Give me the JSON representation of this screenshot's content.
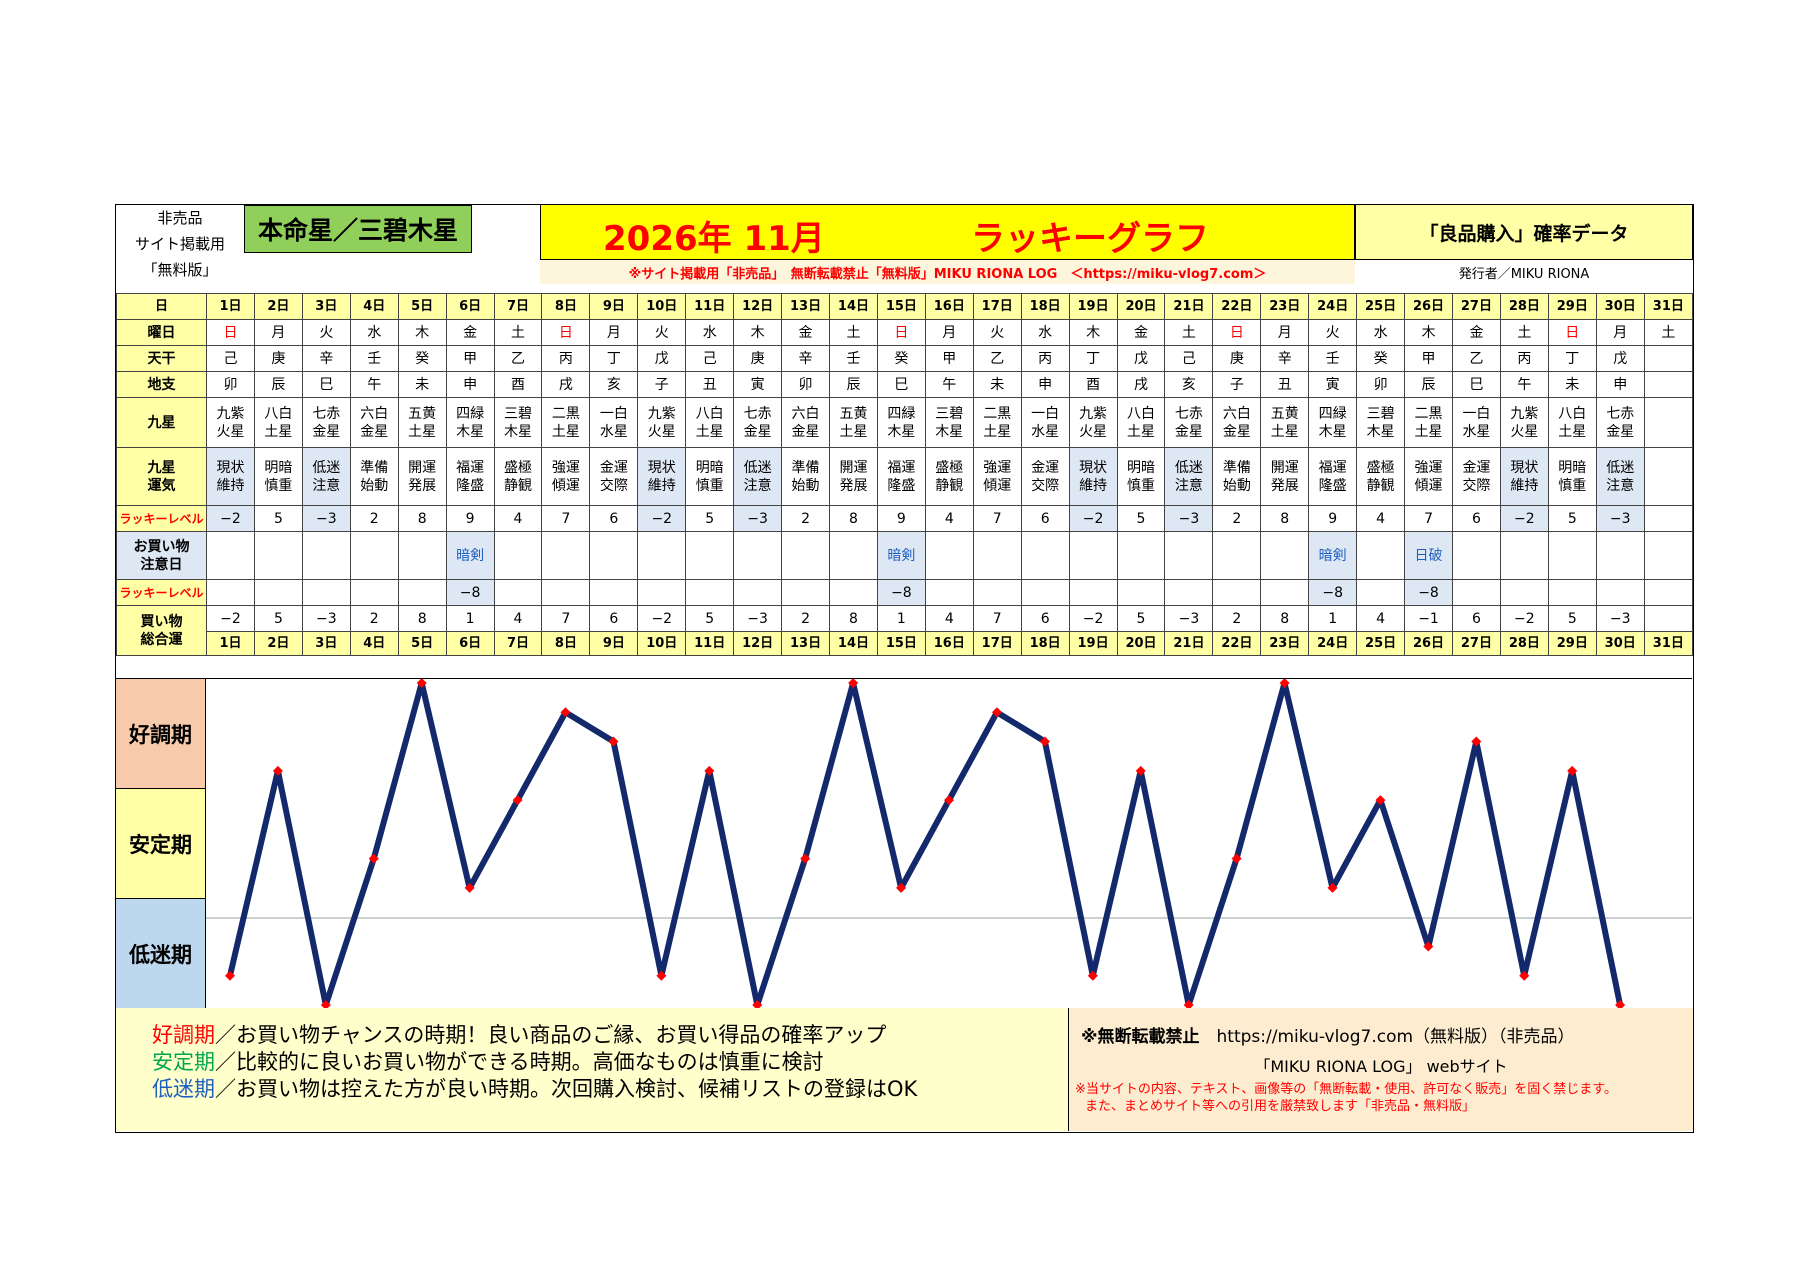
{
  "header": {
    "top_left_notes": [
      "非売品",
      "サイト掲載用",
      "「無料版」"
    ],
    "honmei_star": "本命星／三碧木星",
    "year_month": "2026年 11月",
    "graph_title": "ラッキーグラフ",
    "data_label": "「良品購入」確率データ",
    "notice": "※サイト掲載用「非売品」　無断転載禁止「無料版」MIKU RIONA LOG　＜https://miku-vlog7.com＞",
    "publisher": "発行者／MIKU RIONA"
  },
  "row_labels": {
    "day": "日",
    "weekday": "曜日",
    "tenkan": "天干",
    "chishi": "地支",
    "kyusei": "九星",
    "kyusei_luck": [
      "九星",
      "運気"
    ],
    "lucky_level": "ラッキーレベル",
    "caution_day": [
      "お買い物",
      "注意日"
    ],
    "lucky_level2": "ラッキーレベル",
    "total": [
      "買い物",
      "総合運"
    ]
  },
  "days": [
    "1日",
    "2日",
    "3日",
    "4日",
    "5日",
    "6日",
    "7日",
    "8日",
    "9日",
    "10日",
    "11日",
    "12日",
    "13日",
    "14日",
    "15日",
    "16日",
    "17日",
    "18日",
    "19日",
    "20日",
    "21日",
    "22日",
    "23日",
    "24日",
    "25日",
    "26日",
    "27日",
    "28日",
    "29日",
    "30日",
    "31日"
  ],
  "weekdays": [
    "日",
    "月",
    "火",
    "水",
    "木",
    "金",
    "土",
    "日",
    "月",
    "火",
    "水",
    "木",
    "金",
    "土",
    "日",
    "月",
    "火",
    "水",
    "木",
    "金",
    "土",
    "日",
    "月",
    "火",
    "水",
    "木",
    "金",
    "土",
    "日",
    "月",
    "土"
  ],
  "tenkan": [
    "己",
    "庚",
    "辛",
    "壬",
    "癸",
    "甲",
    "乙",
    "丙",
    "丁",
    "戊",
    "己",
    "庚",
    "辛",
    "壬",
    "癸",
    "甲",
    "乙",
    "丙",
    "丁",
    "戊",
    "己",
    "庚",
    "辛",
    "壬",
    "癸",
    "甲",
    "乙",
    "丙",
    "丁",
    "戊",
    ""
  ],
  "chishi": [
    "卯",
    "辰",
    "巳",
    "午",
    "未",
    "申",
    "酉",
    "戌",
    "亥",
    "子",
    "丑",
    "寅",
    "卯",
    "辰",
    "巳",
    "午",
    "未",
    "申",
    "酉",
    "戌",
    "亥",
    "子",
    "丑",
    "寅",
    "卯",
    "辰",
    "巳",
    "午",
    "未",
    "申",
    ""
  ],
  "kyusei": [
    [
      "九紫",
      "火星"
    ],
    [
      "八白",
      "土星"
    ],
    [
      "七赤",
      "金星"
    ],
    [
      "六白",
      "金星"
    ],
    [
      "五黄",
      "土星"
    ],
    [
      "四緑",
      "木星"
    ],
    [
      "三碧",
      "木星"
    ],
    [
      "二黒",
      "土星"
    ],
    [
      "一白",
      "水星"
    ],
    [
      "九紫",
      "火星"
    ],
    [
      "八白",
      "土星"
    ],
    [
      "七赤",
      "金星"
    ],
    [
      "六白",
      "金星"
    ],
    [
      "五黄",
      "土星"
    ],
    [
      "四緑",
      "木星"
    ],
    [
      "三碧",
      "木星"
    ],
    [
      "二黒",
      "土星"
    ],
    [
      "一白",
      "水星"
    ],
    [
      "九紫",
      "火星"
    ],
    [
      "八白",
      "土星"
    ],
    [
      "七赤",
      "金星"
    ],
    [
      "六白",
      "金星"
    ],
    [
      "五黄",
      "土星"
    ],
    [
      "四緑",
      "木星"
    ],
    [
      "三碧",
      "木星"
    ],
    [
      "二黒",
      "土星"
    ],
    [
      "一白",
      "水星"
    ],
    [
      "九紫",
      "火星"
    ],
    [
      "八白",
      "土星"
    ],
    [
      "七赤",
      "金星"
    ],
    [
      "",
      ""
    ]
  ],
  "kyusei_luck": [
    [
      "現状",
      "維持"
    ],
    [
      "明暗",
      "慎重"
    ],
    [
      "低迷",
      "注意"
    ],
    [
      "準備",
      "始動"
    ],
    [
      "開運",
      "発展"
    ],
    [
      "福運",
      "隆盛"
    ],
    [
      "盛極",
      "静観"
    ],
    [
      "強運",
      "傾運"
    ],
    [
      "金運",
      "交際"
    ],
    [
      "現状",
      "維持"
    ],
    [
      "明暗",
      "慎重"
    ],
    [
      "低迷",
      "注意"
    ],
    [
      "準備",
      "始動"
    ],
    [
      "開運",
      "発展"
    ],
    [
      "福運",
      "隆盛"
    ],
    [
      "盛極",
      "静観"
    ],
    [
      "強運",
      "傾運"
    ],
    [
      "金運",
      "交際"
    ],
    [
      "現状",
      "維持"
    ],
    [
      "明暗",
      "慎重"
    ],
    [
      "低迷",
      "注意"
    ],
    [
      "準備",
      "始動"
    ],
    [
      "開運",
      "発展"
    ],
    [
      "福運",
      "隆盛"
    ],
    [
      "盛極",
      "静観"
    ],
    [
      "強運",
      "傾運"
    ],
    [
      "金運",
      "交際"
    ],
    [
      "現状",
      "維持"
    ],
    [
      "明暗",
      "慎重"
    ],
    [
      "低迷",
      "注意"
    ],
    [
      "",
      ""
    ]
  ],
  "lucky_level": [
    "−2",
    "5",
    "−3",
    "2",
    "8",
    "9",
    "4",
    "7",
    "6",
    "−2",
    "5",
    "−3",
    "2",
    "8",
    "9",
    "4",
    "7",
    "6",
    "−2",
    "5",
    "−3",
    "2",
    "8",
    "9",
    "4",
    "7",
    "6",
    "−2",
    "5",
    "−3",
    ""
  ],
  "caution": [
    "",
    "",
    "",
    "",
    "",
    "暗剣",
    "",
    "",
    "",
    "",
    "",
    "",
    "",
    "",
    "暗剣",
    "",
    "",
    "",
    "",
    "",
    "",
    "",
    "",
    "暗剣",
    "",
    "日破",
    "",
    "",
    "",
    "",
    ""
  ],
  "caution_level": [
    "",
    "",
    "",
    "",
    "",
    "−8",
    "",
    "",
    "",
    "",
    "",
    "",
    "",
    "",
    "−8",
    "",
    "",
    "",
    "",
    "",
    "",
    "",
    "",
    "−8",
    "",
    "−8",
    "",
    "",
    "",
    "",
    ""
  ],
  "total": [
    "−2",
    "5",
    "−3",
    "2",
    "8",
    "1",
    "4",
    "7",
    "6",
    "−2",
    "5",
    "−3",
    "2",
    "8",
    "1",
    "4",
    "7",
    "6",
    "−2",
    "5",
    "−3",
    "2",
    "8",
    "1",
    "4",
    "−1",
    "6",
    "−2",
    "5",
    "−3",
    ""
  ],
  "bands": {
    "good": "好調期",
    "stable": "安定期",
    "low": "低迷期"
  },
  "legend": {
    "good_term": "好調期",
    "good_text": "／お買い物チャンスの時期！良い商品のご縁、お買い得品の確率アップ",
    "stable_term": "安定期",
    "stable_text": "／比較的に良いお買い物ができる時期。高価なものは慎重に検討",
    "low_term": "低迷期",
    "low_text": "／お買い物は控えた方が良い時期。次回購入検討、候補リストの登録はOK"
  },
  "copyright": {
    "line1": "※無断転載禁止",
    "line1_url": "https://miku-vlog7.com（無料版）（非売品）",
    "line2": "「MIKU RIONA LOG」 webサイト",
    "line3": "※当サイトの内容、テキスト、画像等の「無断転載・使用、許可なく販売」を固く禁じます。",
    "line4": "また、まとめサイト等への引用を厳禁致します「非売品・無料版」"
  },
  "colors": {
    "line": "#13296b",
    "marker": "#ff0000",
    "good_band": "#f8caac",
    "stable_band": "#ffffa6",
    "low_band": "#bdd7ee"
  },
  "chart_data": {
    "type": "line",
    "x": [
      1,
      2,
      3,
      4,
      5,
      6,
      7,
      8,
      9,
      10,
      11,
      12,
      13,
      14,
      15,
      16,
      17,
      18,
      19,
      20,
      21,
      22,
      23,
      24,
      25,
      26,
      27,
      28,
      29,
      30
    ],
    "series": [
      {
        "values": [
          -2,
          5,
          -3,
          2,
          8,
          1,
          4,
          7,
          6,
          -2,
          5,
          -3,
          2,
          8,
          1,
          4,
          7,
          6,
          -2,
          5,
          -3,
          2,
          8,
          1,
          4,
          -1,
          6,
          -2,
          5,
          -3
        ]
      }
    ],
    "ylim": [
      -3,
      8
    ]
  }
}
